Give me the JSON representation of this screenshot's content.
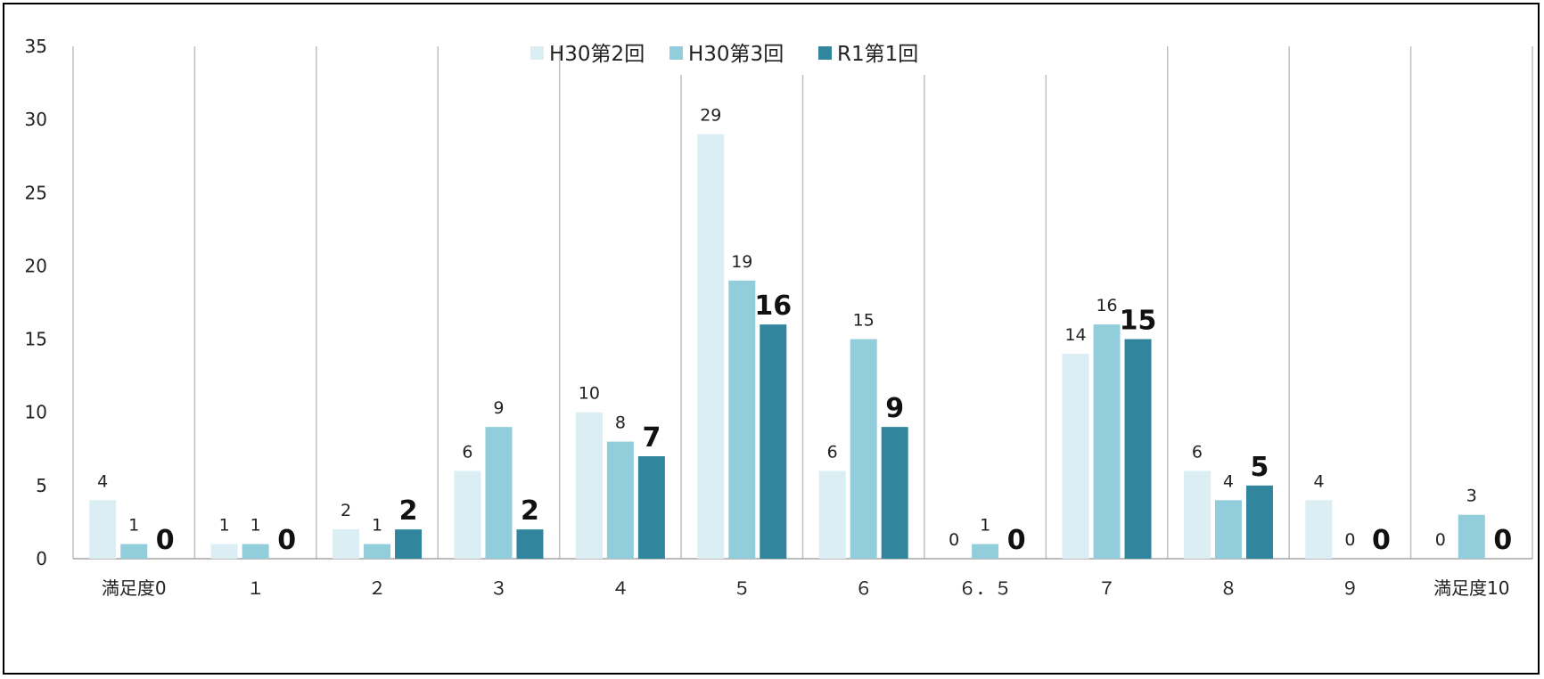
{
  "chart_data": {
    "type": "bar",
    "categories": [
      "満足度0",
      "１",
      "２",
      "３",
      "４",
      "５",
      "６",
      "６．５",
      "７",
      "８",
      "９",
      "満足度10"
    ],
    "series": [
      {
        "name": "H30第2回",
        "values": [
          4,
          1,
          2,
          6,
          10,
          29,
          6,
          0,
          14,
          6,
          4,
          0
        ],
        "color": "#DAEEF3"
      },
      {
        "name": "H30第3回",
        "values": [
          1,
          1,
          1,
          9,
          8,
          19,
          15,
          1,
          16,
          4,
          0,
          3
        ],
        "color": "#92CDDC"
      },
      {
        "name": "R1第1回",
        "values": [
          0,
          0,
          2,
          2,
          7,
          16,
          9,
          0,
          15,
          5,
          0,
          0
        ],
        "color": "#31859C"
      }
    ],
    "ylim": [
      0,
      35
    ],
    "yticks": [
      0,
      5,
      10,
      15,
      20,
      25,
      30,
      35
    ],
    "grid": "vertical category separators",
    "legend_position": "top-center",
    "bold_labels_series": "R1第1回"
  }
}
